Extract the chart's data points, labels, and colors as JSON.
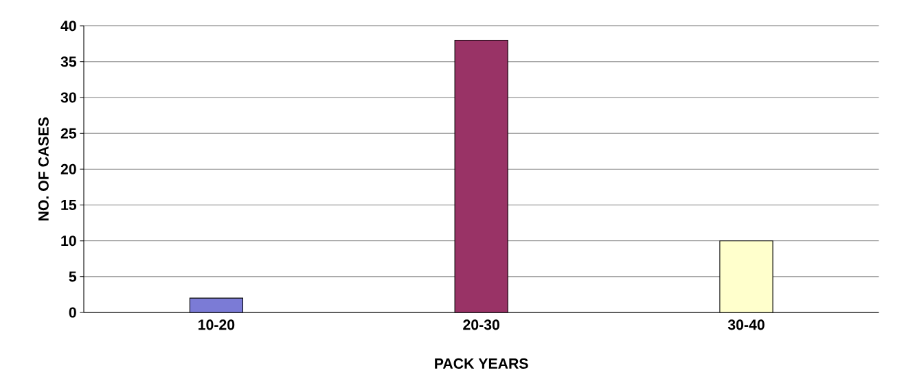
{
  "chart_data": {
    "type": "bar",
    "xlabel": "PACK YEARS",
    "ylabel": "NO. OF CASES",
    "categories": [
      "10-20",
      "20-30",
      "30-40"
    ],
    "values": [
      2,
      38,
      10
    ],
    "colors": [
      "#7b7bd6",
      "#993366",
      "#ffffcc"
    ],
    "ylim": [
      0,
      40
    ],
    "yticks": [
      0,
      5,
      10,
      15,
      20,
      25,
      30,
      35,
      40
    ],
    "grid": "y"
  }
}
